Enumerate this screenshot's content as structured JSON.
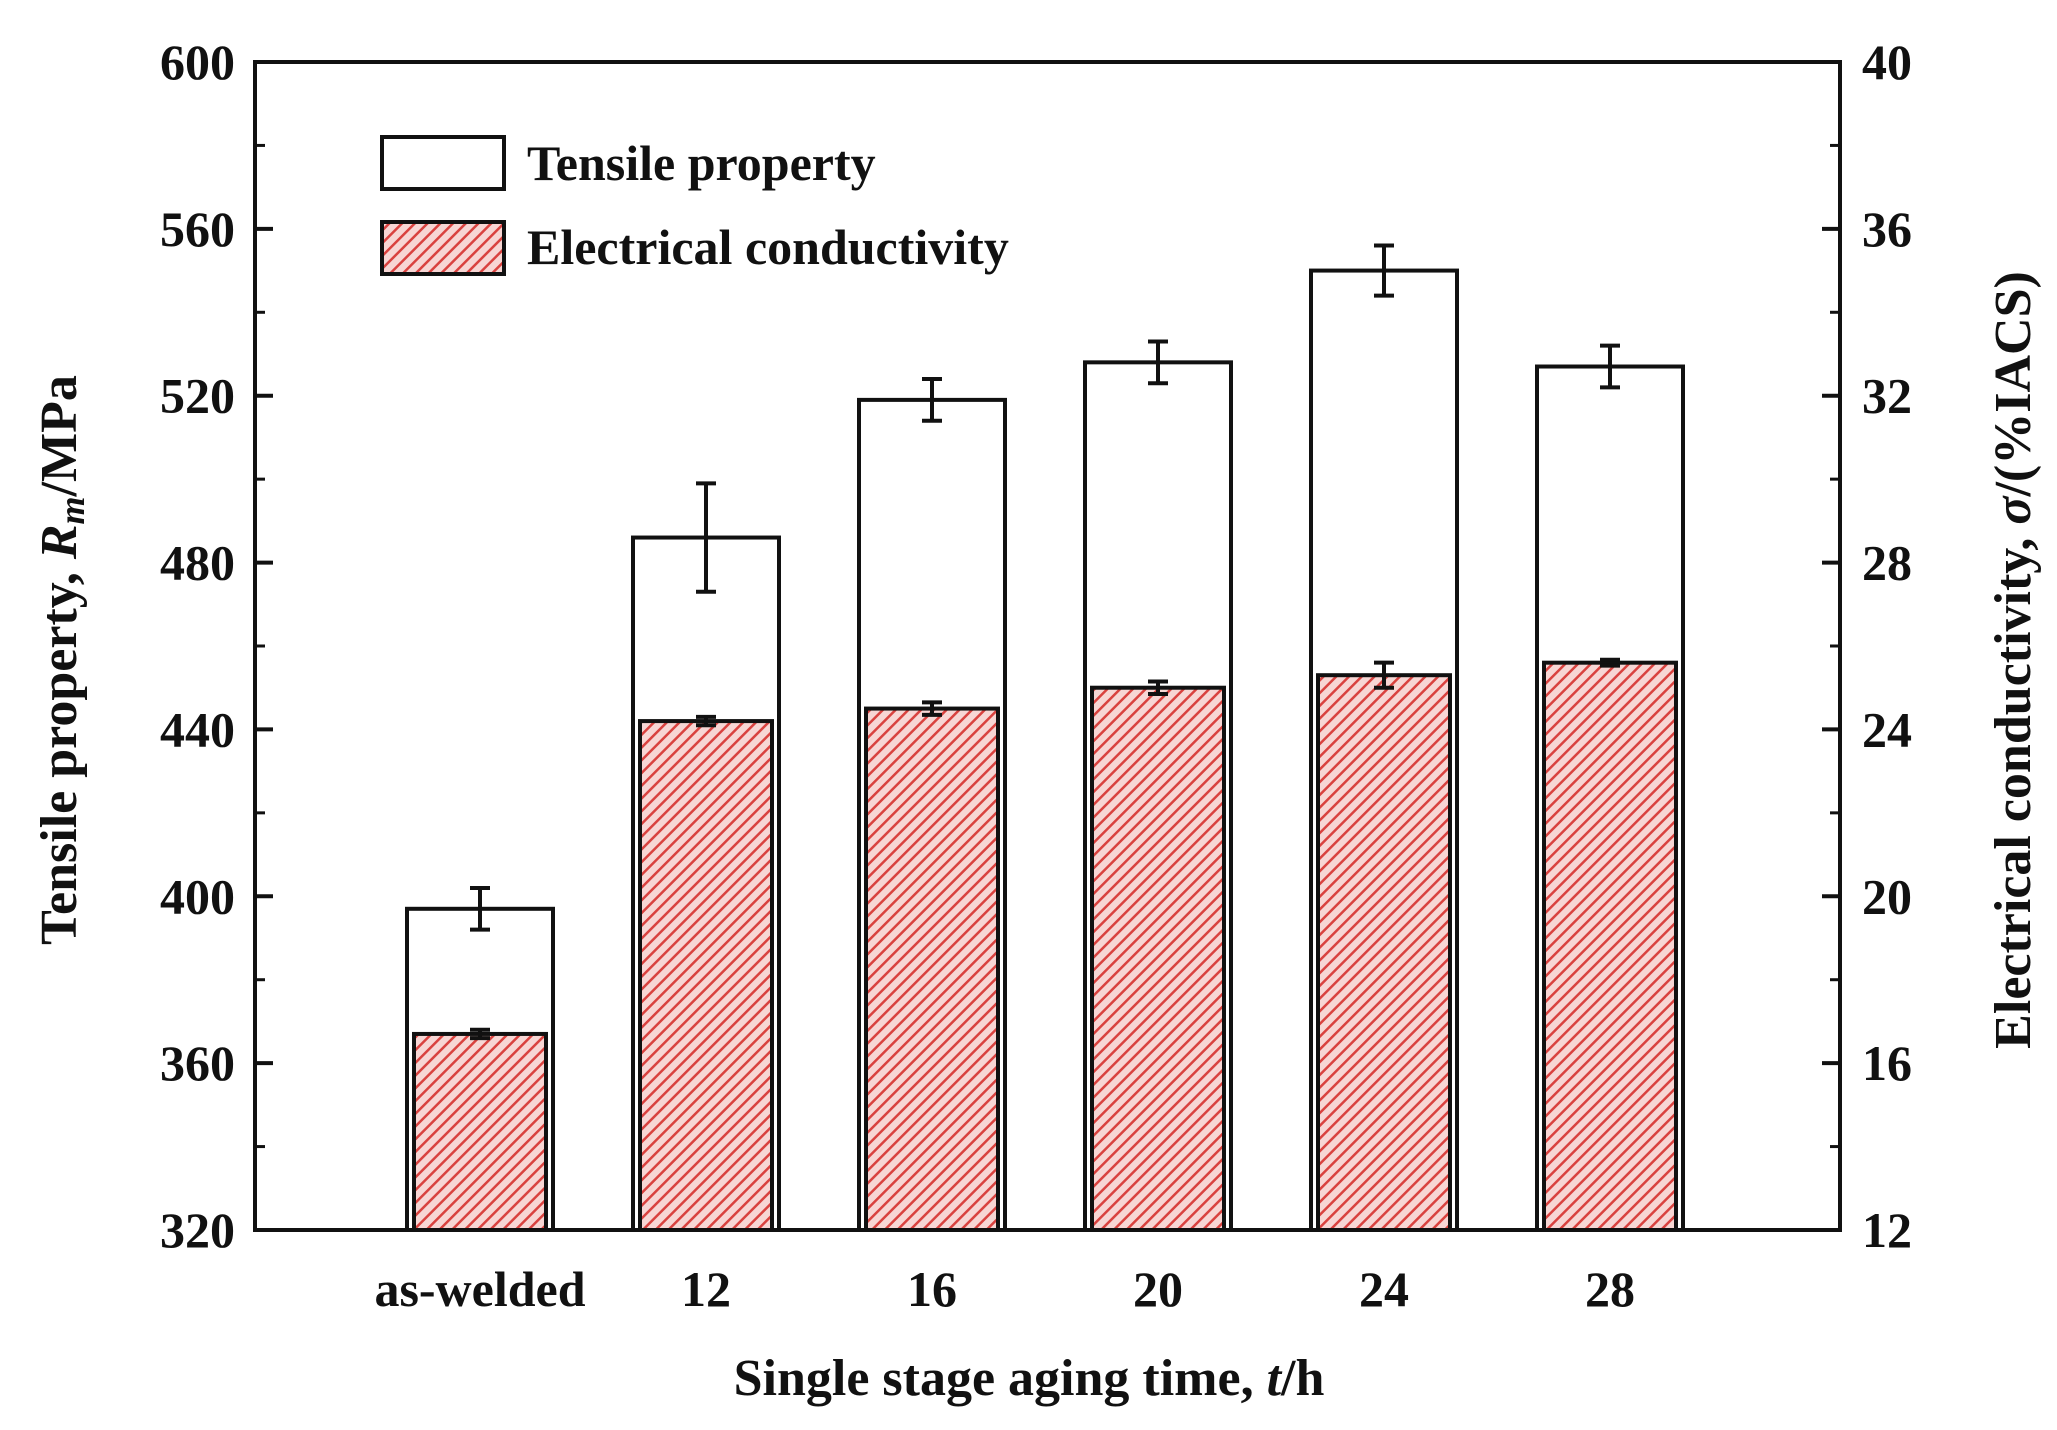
{
  "chart_data": {
    "type": "bar",
    "categories": [
      "as-welded",
      "12",
      "16",
      "20",
      "24",
      "28"
    ],
    "series": [
      {
        "name": "Tensile property",
        "axis": "left",
        "values": [
          397,
          486,
          519,
          528,
          550,
          527
        ],
        "errors": [
          5,
          13,
          5,
          5,
          6,
          5
        ],
        "fill": "#ffffff",
        "stroke": "#111111"
      },
      {
        "name": "Electrical conductivity",
        "axis": "right",
        "values": [
          16.7,
          24.2,
          24.5,
          25.0,
          25.3,
          25.6
        ],
        "errors": [
          0.1,
          0.1,
          0.15,
          0.15,
          0.3,
          0.07
        ],
        "fill": "#d9423f",
        "stroke": "#111111"
      }
    ],
    "xlabel_parts": [
      "Single stage aging time, ",
      "t",
      "/h"
    ],
    "ylabel_left_parts": [
      "Tensile property, ",
      "R",
      "m",
      "/MPa"
    ],
    "ylabel_right_parts": [
      "Electrical conductivity, ",
      "σ",
      "/(%IACS)"
    ],
    "ylim_left": [
      320,
      600
    ],
    "yticks_left": [
      320,
      360,
      400,
      440,
      480,
      520,
      560,
      600
    ],
    "ylim_right": [
      12,
      40
    ],
    "yticks_right": [
      12,
      16,
      20,
      24,
      28,
      32,
      36,
      40
    ],
    "legend": [
      "Tensile property",
      "Electrical conductivity"
    ],
    "legend_position": "top-left",
    "grid": false
  }
}
